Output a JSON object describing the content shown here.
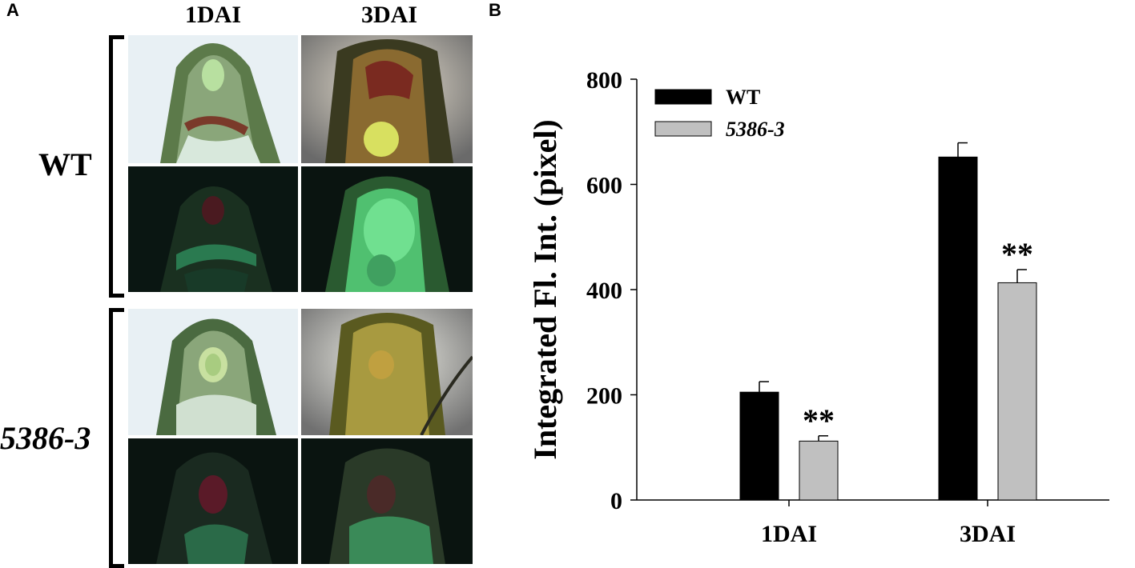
{
  "panel_a": {
    "letter": "A",
    "columns": [
      "1DAI",
      "3DAI"
    ],
    "rows": [
      "WT",
      "5386-3"
    ]
  },
  "panel_b": {
    "letter": "B"
  },
  "colors": {
    "wt": "#000000",
    "mutant": "#c0c0c0"
  },
  "chart_data": {
    "type": "bar",
    "categories": [
      "1DAI",
      "3DAI"
    ],
    "series": [
      {
        "name": "WT",
        "values": [
          205,
          652
        ],
        "errors": [
          20,
          27
        ],
        "color": "#000000"
      },
      {
        "name": "5386-3",
        "values": [
          112,
          413
        ],
        "errors": [
          10,
          25
        ],
        "color": "#c0c0c0",
        "annotations": [
          "**",
          "**"
        ]
      }
    ],
    "xlabel": "",
    "ylabel": "Integrated Fl. Int. (pixel)",
    "ylim": [
      0,
      800
    ],
    "yticks": [
      0,
      200,
      400,
      600,
      800
    ],
    "legend": "top-left",
    "grid": false
  }
}
